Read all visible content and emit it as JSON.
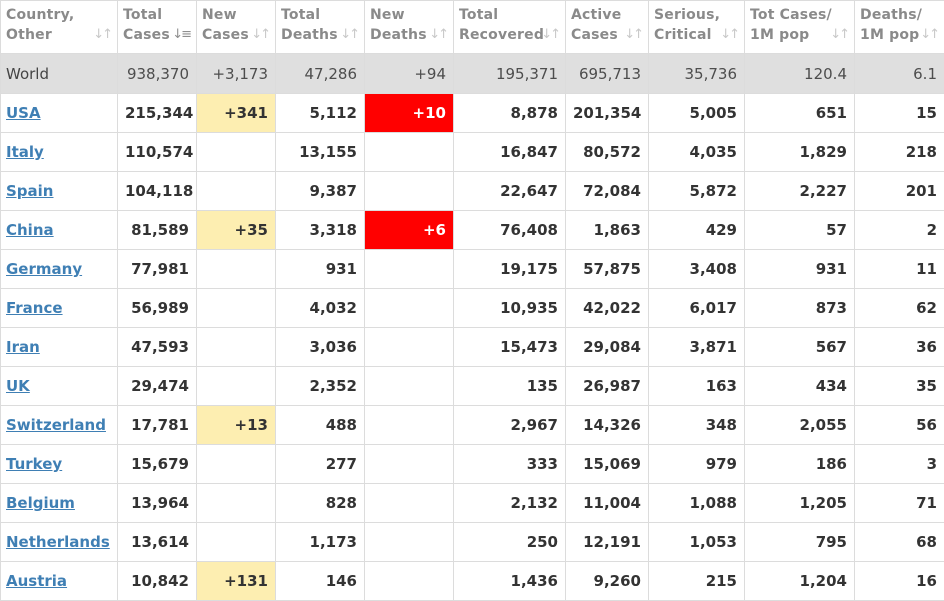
{
  "colors": {
    "new_cases_highlight": "#fdeeb1",
    "new_deaths_highlight": "#ff0000",
    "link": "#3f7fb4",
    "world_row_bg": "#dfdfdf"
  },
  "columns": [
    {
      "key": "country",
      "label": "Country,\nOther",
      "sort_icon": "sort-updown-icon"
    },
    {
      "key": "total_cases",
      "label": "Total\nCases",
      "sort_icon": "sort-desc-icon"
    },
    {
      "key": "new_cases",
      "label": "New\nCases",
      "sort_icon": "sort-updown-icon"
    },
    {
      "key": "total_deaths",
      "label": "Total\nDeaths",
      "sort_icon": "sort-updown-icon"
    },
    {
      "key": "new_deaths",
      "label": "New\nDeaths",
      "sort_icon": "sort-updown-icon"
    },
    {
      "key": "total_recovered",
      "label": "Total\nRecovered",
      "sort_icon": "sort-updown-icon"
    },
    {
      "key": "active_cases",
      "label": "Active\nCases",
      "sort_icon": "sort-updown-icon"
    },
    {
      "key": "serious",
      "label": "Serious,\nCritical",
      "sort_icon": "sort-updown-icon"
    },
    {
      "key": "cases_per_1m",
      "label": "Tot Cases/\n1M pop",
      "sort_icon": "sort-updown-icon"
    },
    {
      "key": "deaths_per_1m",
      "label": "Deaths/\n1M pop",
      "sort_icon": "sort-updown-icon"
    }
  ],
  "world": [
    "World",
    "938,370",
    "+3,173",
    "47,286",
    "+94",
    "195,371",
    "695,713",
    "35,736",
    "120.4",
    "6.1"
  ],
  "rows": [
    [
      "USA",
      "215,344",
      "+341",
      "5,112",
      "+10",
      "8,878",
      "201,354",
      "5,005",
      "651",
      "15"
    ],
    [
      "Italy",
      "110,574",
      "",
      "13,155",
      "",
      "16,847",
      "80,572",
      "4,035",
      "1,829",
      "218"
    ],
    [
      "Spain",
      "104,118",
      "",
      "9,387",
      "",
      "22,647",
      "72,084",
      "5,872",
      "2,227",
      "201"
    ],
    [
      "China",
      "81,589",
      "+35",
      "3,318",
      "+6",
      "76,408",
      "1,863",
      "429",
      "57",
      "2"
    ],
    [
      "Germany",
      "77,981",
      "",
      "931",
      "",
      "19,175",
      "57,875",
      "3,408",
      "931",
      "11"
    ],
    [
      "France",
      "56,989",
      "",
      "4,032",
      "",
      "10,935",
      "42,022",
      "6,017",
      "873",
      "62"
    ],
    [
      "Iran",
      "47,593",
      "",
      "3,036",
      "",
      "15,473",
      "29,084",
      "3,871",
      "567",
      "36"
    ],
    [
      "UK",
      "29,474",
      "",
      "2,352",
      "",
      "135",
      "26,987",
      "163",
      "434",
      "35"
    ],
    [
      "Switzerland",
      "17,781",
      "+13",
      "488",
      "",
      "2,967",
      "14,326",
      "348",
      "2,055",
      "56"
    ],
    [
      "Turkey",
      "15,679",
      "",
      "277",
      "",
      "333",
      "15,069",
      "979",
      "186",
      "3"
    ],
    [
      "Belgium",
      "13,964",
      "",
      "828",
      "",
      "2,132",
      "11,004",
      "1,088",
      "1,205",
      "71"
    ],
    [
      "Netherlands",
      "13,614",
      "",
      "1,173",
      "",
      "250",
      "12,191",
      "1,053",
      "795",
      "68"
    ],
    [
      "Austria",
      "10,842",
      "+131",
      "146",
      "",
      "1,436",
      "9,260",
      "215",
      "1,204",
      "16"
    ]
  ]
}
